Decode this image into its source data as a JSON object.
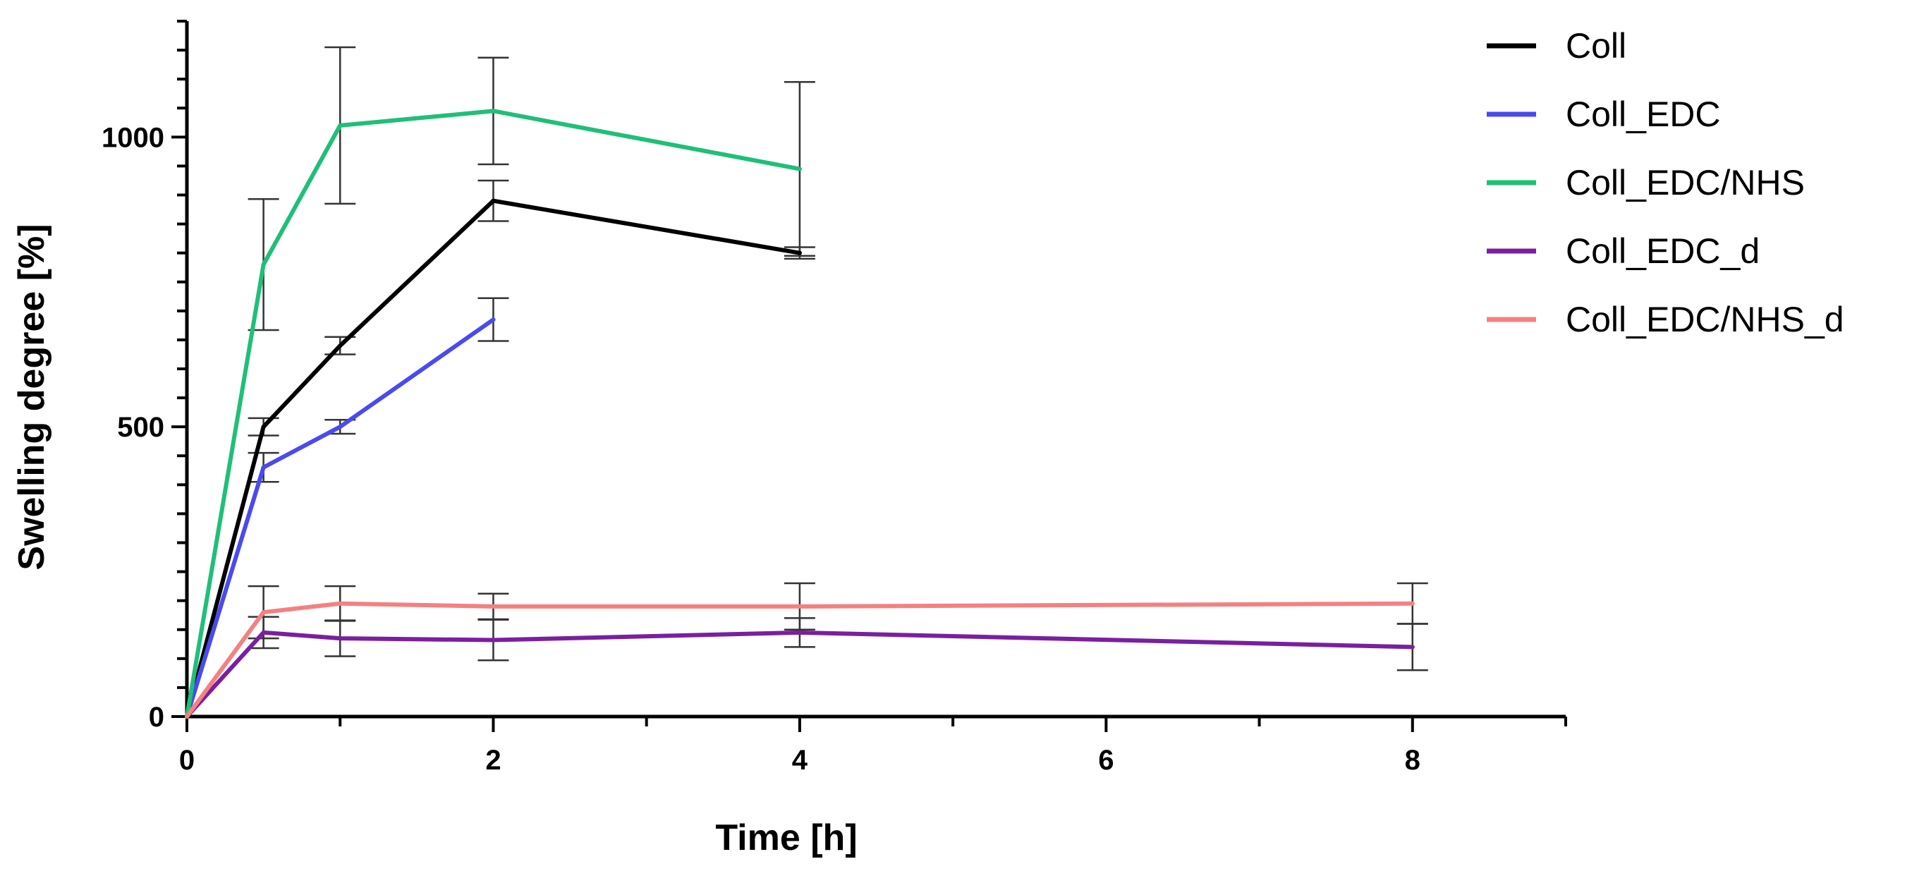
{
  "chart_data": {
    "type": "line",
    "xlabel": "Time [h]",
    "ylabel": "Swelling degree [%]",
    "xlim": [
      0,
      9
    ],
    "ylim": [
      0,
      1200
    ],
    "xticks": [
      "0",
      "2",
      "4",
      "6",
      "8"
    ],
    "yticks": [
      "0",
      "500",
      "1000"
    ],
    "legend_position": "top-right",
    "series": [
      {
        "name": "Coll",
        "color": "#000000",
        "x": [
          0,
          0.5,
          1,
          2,
          4
        ],
        "y": [
          0,
          500,
          640,
          890,
          800
        ],
        "err": [
          0,
          15,
          15,
          35,
          10
        ]
      },
      {
        "name": "Coll_EDC",
        "color": "#4a4af0",
        "x": [
          0,
          0.5,
          1,
          2
        ],
        "y": [
          0,
          430,
          500,
          685
        ],
        "err": [
          0,
          25,
          12,
          37
        ]
      },
      {
        "name": "Coll_EDC/NHS",
        "color": "#1fbf78",
        "x": [
          0,
          0.5,
          1,
          2,
          4
        ],
        "y": [
          0,
          780,
          1020,
          1045,
          945
        ],
        "err": [
          0,
          113,
          135,
          92,
          150
        ]
      },
      {
        "name": "Coll_EDC_d",
        "color": "#7a1fa0",
        "x": [
          0,
          0.5,
          1,
          2,
          4,
          8
        ],
        "y": [
          0,
          145,
          135,
          132,
          145,
          120
        ],
        "err": [
          0,
          27,
          31,
          35,
          25,
          40
        ]
      },
      {
        "name": "Coll_EDC/NHS_d",
        "color": "#f58080",
        "x": [
          0,
          0.5,
          1,
          2,
          4,
          8
        ],
        "y": [
          0,
          180,
          195,
          190,
          190,
          195
        ],
        "err": [
          0,
          45,
          30,
          22,
          40,
          35
        ]
      }
    ]
  }
}
